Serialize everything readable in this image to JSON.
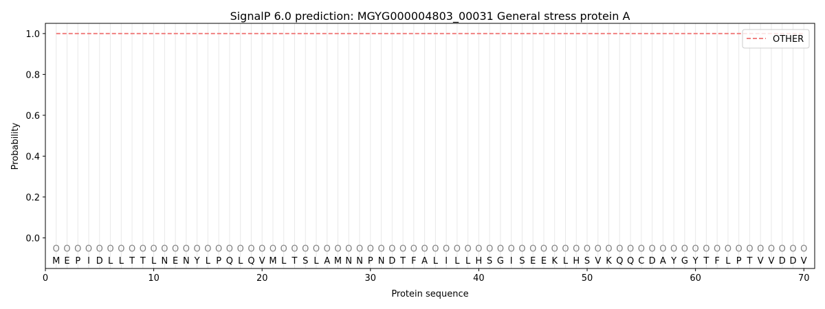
{
  "chart_data": {
    "type": "line",
    "title": "SignalP 6.0 prediction: MGYG000004803_00031 General stress protein A",
    "xlabel": "Protein sequence",
    "ylabel": "Probability",
    "xlim": [
      0,
      71
    ],
    "ylim": [
      -0.15,
      1.05
    ],
    "xticks": [
      0,
      10,
      20,
      30,
      40,
      50,
      60,
      70
    ],
    "yticks": [
      0.0,
      0.2,
      0.4,
      0.6,
      0.8,
      1.0
    ],
    "ytick_labels": [
      "0.0",
      "0.2",
      "0.4",
      "0.6",
      "0.8",
      "1.0"
    ],
    "sequence": [
      "M",
      "E",
      "P",
      "I",
      "D",
      "L",
      "L",
      "T",
      "T",
      "L",
      "N",
      "E",
      "N",
      "Y",
      "L",
      "P",
      "Q",
      "L",
      "Q",
      "V",
      "M",
      "L",
      "T",
      "S",
      "L",
      "A",
      "M",
      "N",
      "N",
      "P",
      "N",
      "D",
      "T",
      "F",
      "A",
      "L",
      "I",
      "L",
      "L",
      "H",
      "S",
      "G",
      "I",
      "S",
      "E",
      "E",
      "K",
      "L",
      "H",
      "S",
      "V",
      "K",
      "Q",
      "Q",
      "C",
      "D",
      "A",
      "Y",
      "G",
      "Y",
      "T",
      "F",
      "L",
      "P",
      "T",
      "V",
      "V",
      "D",
      "D",
      "V"
    ],
    "region_label": "O",
    "series": [
      {
        "name": "OTHER",
        "color": "#f08080",
        "style": "dashed",
        "x_start": 1,
        "x_end": 70,
        "value": 1.0
      }
    ],
    "legend_position": "top-right",
    "grid": "vertical lines at each residue"
  }
}
